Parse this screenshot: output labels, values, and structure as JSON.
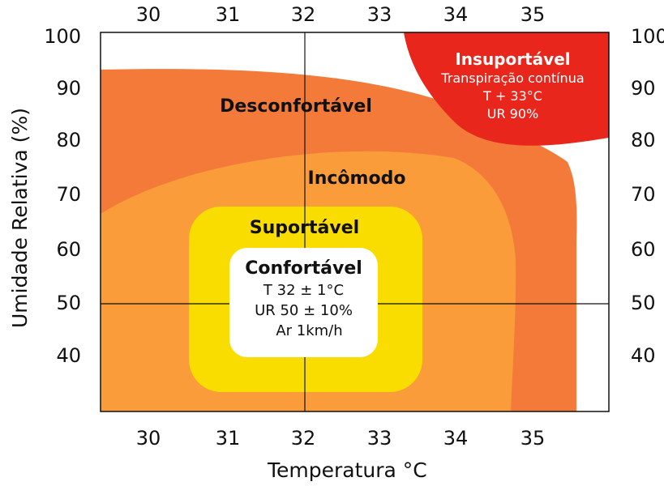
{
  "x_axis": {
    "title": "Temperatura °C",
    "ticks": [
      "30",
      "31",
      "32",
      "33",
      "34",
      "35"
    ]
  },
  "y_axis": {
    "title": "Umidade Relativa (%)",
    "ticks": [
      "100",
      "90",
      "80",
      "70",
      "60",
      "50",
      "40"
    ]
  },
  "zones": {
    "insuportavel": {
      "label": "Insuportável",
      "line1": "Transpiração contínua",
      "line2": "T  +  33°C",
      "line3": "UR 90%",
      "color": "#e8261c"
    },
    "desconfortavel": {
      "label": "Desconfortável",
      "color": "#f47a3a"
    },
    "incomodo": {
      "label": "Incômodo",
      "color": "#f99c39"
    },
    "suportavel": {
      "label": "Suportável",
      "color": "#f9dc00"
    },
    "confortavel": {
      "label": "Confortável",
      "line1": "T  32 ± 1°C",
      "line2": "UR  50 ± 10%",
      "line3": "Ar  1km/h",
      "color": "#ffffff"
    }
  },
  "reference_lines": {
    "x": "32",
    "y": "50"
  }
}
